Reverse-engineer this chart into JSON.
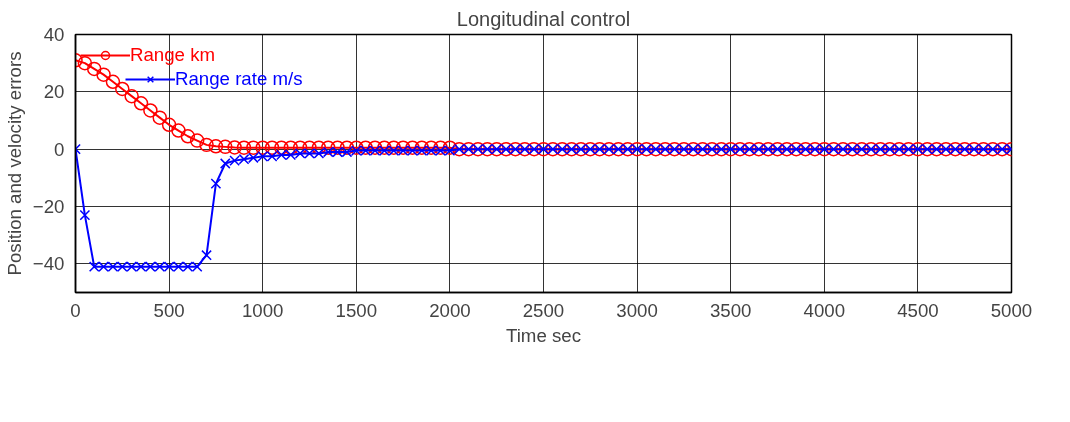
{
  "chart_data": {
    "type": "line",
    "title": "Longitudinal control",
    "xlabel": "Time sec",
    "ylabel": "Position and velocity errors",
    "x": [
      0,
      50,
      100,
      150,
      200,
      250,
      300,
      350,
      400,
      450,
      500,
      550,
      600,
      650,
      700,
      750,
      800,
      850,
      900,
      950,
      1000,
      1050,
      1100,
      1150,
      1200,
      1250,
      1300,
      1350,
      1400,
      1450,
      1500,
      1550,
      1600,
      1650,
      1700,
      1750,
      1800,
      1850,
      1900,
      1950,
      2000,
      2050,
      2100,
      2150,
      2200,
      2250,
      2300,
      2350,
      2400,
      2450,
      2500,
      2550,
      2600,
      2650,
      2700,
      2750,
      2800,
      2850,
      2900,
      2950,
      3000,
      3050,
      3100,
      3150,
      3200,
      3250,
      3300,
      3350,
      3400,
      3450,
      3500,
      3550,
      3600,
      3650,
      3700,
      3750,
      3800,
      3850,
      3900,
      3950,
      4000,
      4050,
      4100,
      4150,
      4200,
      4250,
      4300,
      4350,
      4400,
      4450,
      4500,
      4550,
      4600,
      4650,
      4700,
      4750,
      4800,
      4850,
      4900,
      4950,
      5000
    ],
    "series": [
      {
        "name": "Range km",
        "color": "#ff0000",
        "marker": "circle",
        "values": [
          31,
          30,
          28,
          26,
          23.5,
          21,
          18.5,
          16,
          13.5,
          11,
          8.5,
          6.5,
          4.5,
          3,
          1.5,
          1,
          0.8,
          0.6,
          0.5,
          0.5,
          0.5,
          0.5,
          0.5,
          0.5,
          0.5,
          0.5,
          0.5,
          0.5,
          0.5,
          0.5,
          0.5,
          0.5,
          0.5,
          0.5,
          0.5,
          0.5,
          0.5,
          0.5,
          0.5,
          0.5,
          0.5,
          0,
          0,
          0,
          0,
          0,
          0,
          0,
          0,
          0,
          0,
          0,
          0,
          0,
          0,
          0,
          0,
          0,
          0,
          0,
          0,
          0,
          0,
          0,
          0,
          0,
          0,
          0,
          0,
          0,
          0,
          0,
          0,
          0,
          0,
          0,
          0,
          0,
          0,
          0,
          0,
          0,
          0,
          0,
          0,
          0,
          0,
          0,
          0,
          0,
          0,
          0,
          0,
          0,
          0,
          0,
          0,
          0,
          0,
          0,
          0
        ]
      },
      {
        "name": "Range rate m/s",
        "color": "#0000ff",
        "marker": "cross",
        "values": [
          0,
          -23,
          -41,
          -41,
          -41,
          -41,
          -41,
          -41,
          -41,
          -41,
          -41,
          -41,
          -41,
          -41,
          -37,
          -12,
          -5,
          -4,
          -3.5,
          -3,
          -2.5,
          -2.5,
          -2,
          -2,
          -1.5,
          -1.5,
          -1.5,
          -1,
          -1,
          -1,
          -0.5,
          -0.5,
          -0.5,
          -0.5,
          -0.5,
          -0.5,
          -0.5,
          -0.5,
          -0.5,
          -0.5,
          -0.5,
          0,
          0,
          0,
          0,
          0,
          0,
          0,
          0,
          0,
          0,
          0,
          0,
          0,
          0,
          0,
          0,
          0,
          0,
          0,
          0,
          0,
          0,
          0,
          0,
          0,
          0,
          0,
          0,
          0,
          0,
          0,
          0,
          0,
          0,
          0,
          0,
          0,
          0,
          0,
          0,
          0,
          0,
          0,
          0,
          0,
          0,
          0,
          0,
          0,
          0,
          0,
          0,
          0,
          0,
          0,
          0,
          0,
          0,
          0,
          0
        ]
      }
    ],
    "xlim": [
      0,
      5000
    ],
    "xticks": [
      0,
      500,
      1000,
      1500,
      2000,
      2500,
      3000,
      3500,
      4000,
      4500,
      5000
    ],
    "ylim": [
      -50,
      40
    ],
    "yticks": [
      -40,
      -20,
      0,
      20,
      40
    ],
    "grid": true,
    "legend": "top left",
    "line_style": "solid"
  }
}
